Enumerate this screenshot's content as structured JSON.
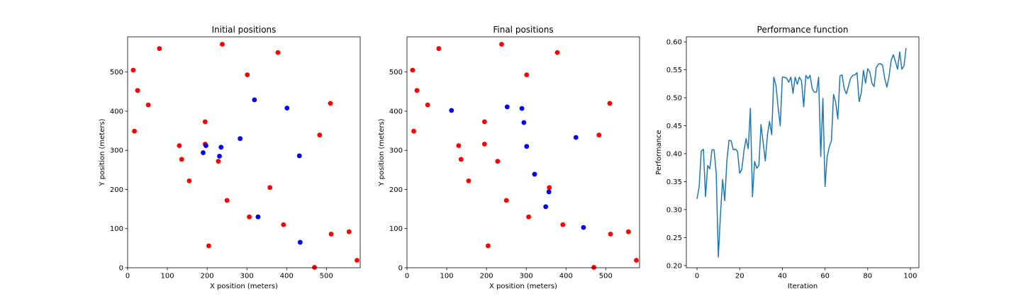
{
  "chart_data": [
    {
      "type": "scatter",
      "title": "Initial positions",
      "xlabel": "X position (meters)",
      "ylabel": "Y position (meters)",
      "xlim": [
        0,
        585
      ],
      "ylim": [
        0,
        590
      ],
      "xticks": [
        0,
        100,
        200,
        300,
        400,
        500
      ],
      "yticks": [
        0,
        100,
        200,
        300,
        400,
        500
      ],
      "grid": false,
      "series": [
        {
          "color": "#ff0000",
          "points": [
            [
              14,
              505
            ],
            [
              25,
              453
            ],
            [
              52,
              416
            ],
            [
              80,
              560
            ],
            [
              17,
              349
            ],
            [
              130,
              312
            ],
            [
              136,
              277
            ],
            [
              155,
              222
            ],
            [
              195,
              373
            ],
            [
              195,
              316
            ],
            [
              228,
              272
            ],
            [
              238,
              571
            ],
            [
              250,
              172
            ],
            [
              204,
              56
            ],
            [
              301,
              493
            ],
            [
              306,
              130
            ],
            [
              358,
              205
            ],
            [
              378,
              550
            ],
            [
              392,
              110
            ],
            [
              470,
              1
            ],
            [
              483,
              339
            ],
            [
              510,
              420
            ],
            [
              512,
              86
            ],
            [
              557,
              92
            ],
            [
              577,
              19
            ]
          ]
        },
        {
          "color": "#0000ff",
          "points": [
            [
              190,
              294
            ],
            [
              197,
              312
            ],
            [
              231,
              285
            ],
            [
              235,
              308
            ],
            [
              283,
              330
            ],
            [
              319,
              429
            ],
            [
              328,
              130
            ],
            [
              401,
              408
            ],
            [
              432,
              286
            ],
            [
              434,
              65
            ]
          ]
        }
      ]
    },
    {
      "type": "scatter",
      "title": "Final positions",
      "xlabel": "X position (meters)",
      "ylabel": "Y position (meters)",
      "xlim": [
        0,
        585
      ],
      "ylim": [
        0,
        590
      ],
      "xticks": [
        0,
        100,
        200,
        300,
        400,
        500
      ],
      "yticks": [
        0,
        100,
        200,
        300,
        400,
        500
      ],
      "grid": false,
      "series": [
        {
          "color": "#ff0000",
          "points": [
            [
              14,
              505
            ],
            [
              25,
              453
            ],
            [
              52,
              416
            ],
            [
              80,
              560
            ],
            [
              17,
              349
            ],
            [
              130,
              312
            ],
            [
              136,
              277
            ],
            [
              155,
              222
            ],
            [
              195,
              373
            ],
            [
              195,
              316
            ],
            [
              228,
              272
            ],
            [
              238,
              571
            ],
            [
              250,
              172
            ],
            [
              204,
              56
            ],
            [
              301,
              493
            ],
            [
              306,
              130
            ],
            [
              358,
              205
            ],
            [
              378,
              550
            ],
            [
              392,
              110
            ],
            [
              470,
              1
            ],
            [
              483,
              339
            ],
            [
              510,
              420
            ],
            [
              512,
              86
            ],
            [
              557,
              92
            ],
            [
              577,
              19
            ]
          ]
        },
        {
          "color": "#0000ff",
          "points": [
            [
              112,
              402
            ],
            [
              252,
              411
            ],
            [
              289,
              407
            ],
            [
              294,
              371
            ],
            [
              301,
              310
            ],
            [
              321,
              239
            ],
            [
              349,
              156
            ],
            [
              357,
              194
            ],
            [
              425,
              333
            ],
            [
              444,
              103
            ]
          ]
        }
      ]
    },
    {
      "type": "line",
      "title": "Performance function",
      "xlabel": "Iteration",
      "ylabel": "Performance",
      "xlim": [
        -5,
        104
      ],
      "ylim": [
        0.196,
        0.609
      ],
      "xticks": [
        0,
        20,
        40,
        60,
        80,
        100
      ],
      "yticks": [
        0.2,
        0.25,
        0.3,
        0.35,
        0.4,
        0.45,
        0.5,
        0.55,
        0.6
      ],
      "grid": false,
      "series": [
        {
          "color": "#1f77b4",
          "values": [
            0.319,
            0.341,
            0.405,
            0.408,
            0.323,
            0.379,
            0.373,
            0.407,
            0.407,
            0.365,
            0.215,
            0.292,
            0.354,
            0.316,
            0.387,
            0.424,
            0.423,
            0.407,
            0.408,
            0.404,
            0.365,
            0.372,
            0.405,
            0.427,
            0.409,
            0.481,
            0.323,
            0.386,
            0.374,
            0.379,
            0.452,
            0.42,
            0.387,
            0.433,
            0.458,
            0.434,
            0.537,
            0.522,
            0.483,
            0.45,
            0.537,
            0.537,
            0.535,
            0.528,
            0.537,
            0.508,
            0.537,
            0.524,
            0.537,
            0.53,
            0.484,
            0.54,
            0.534,
            0.54,
            0.516,
            0.51,
            0.51,
            0.537,
            0.395,
            0.499,
            0.341,
            0.395,
            0.412,
            0.424,
            0.506,
            0.492,
            0.462,
            0.539,
            0.541,
            0.516,
            0.507,
            0.521,
            0.535,
            0.54,
            0.541,
            0.545,
            0.493,
            0.509,
            0.549,
            0.526,
            0.552,
            0.546,
            0.526,
            0.52,
            0.554,
            0.56,
            0.561,
            0.558,
            0.534,
            0.519,
            0.538,
            0.567,
            0.577,
            0.565,
            0.551,
            0.582,
            0.551,
            0.557,
            0.589
          ]
        }
      ]
    }
  ]
}
